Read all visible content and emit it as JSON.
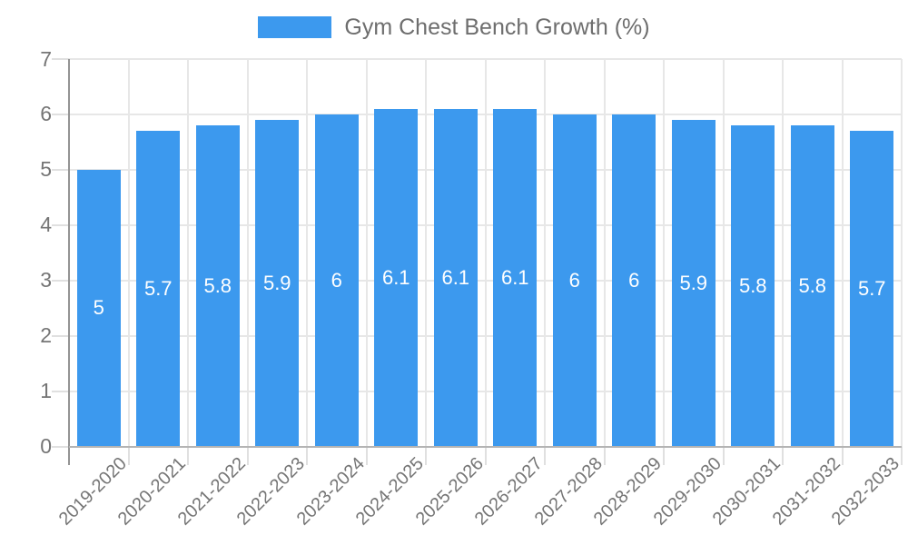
{
  "chart_data": {
    "type": "bar",
    "title": "",
    "legend": {
      "label": "Gym Chest Bench Growth (%)",
      "position": "top-center"
    },
    "categories": [
      "2019-2020",
      "2020-2021",
      "2021-2022",
      "2022-2023",
      "2023-2024",
      "2024-2025",
      "2025-2026",
      "2026-2027",
      "2027-2028",
      "2028-2029",
      "2029-2030",
      "2030-2031",
      "2031-2032",
      "2032-2033"
    ],
    "values": [
      5,
      5.7,
      5.8,
      5.9,
      6,
      6.1,
      6.1,
      6.1,
      6,
      6,
      5.9,
      5.8,
      5.8,
      5.7
    ],
    "value_labels": [
      "5",
      "5.7",
      "5.8",
      "5.9",
      "6",
      "6.1",
      "6.1",
      "6.1",
      "6",
      "6",
      "5.9",
      "5.8",
      "5.8",
      "5.7"
    ],
    "value_labels_position": "inside-middle",
    "xlabel": "",
    "ylabel": "",
    "ylim": [
      0,
      7
    ],
    "yticks": [
      0,
      1,
      2,
      3,
      4,
      5,
      6,
      7
    ],
    "grid": "horizontal-and-vertical",
    "x_tick_rotation_deg": 45,
    "colors": {
      "bar": "#3C99EE",
      "value_label": "#FFFFFF",
      "axis_text": "#757575",
      "legend_text": "#6E6E6E",
      "gridline": "#E7E7E7",
      "tick": "#E0E0E0",
      "y_axis_line": "#949494",
      "x_axis_line": "#B4B4B4"
    }
  }
}
